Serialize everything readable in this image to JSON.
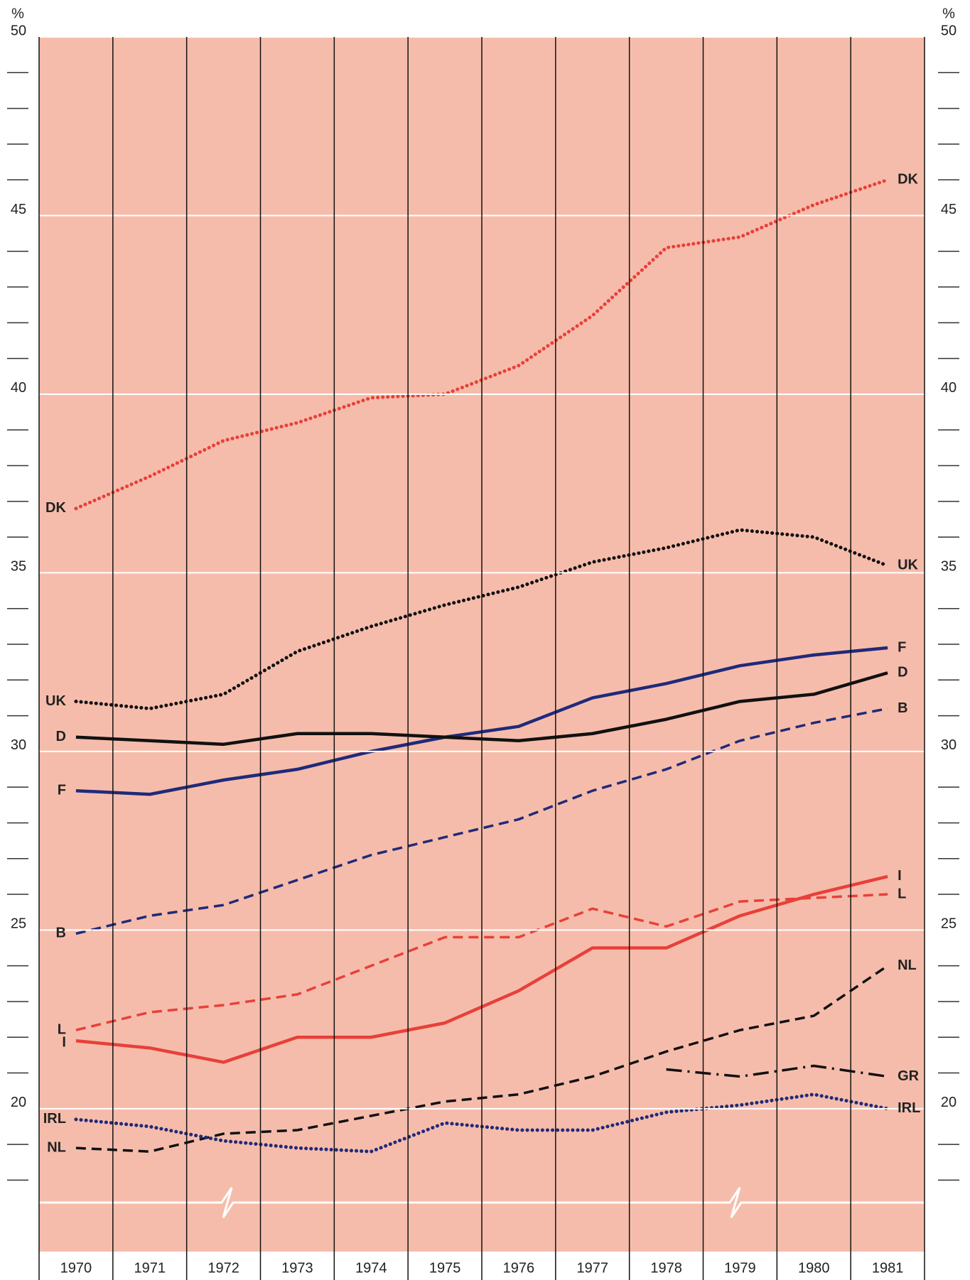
{
  "chart_data": {
    "type": "line",
    "y_unit": "%",
    "categories": [
      "1970",
      "1971",
      "1972",
      "1973",
      "1974",
      "1975",
      "1976",
      "1977",
      "1978",
      "1979",
      "1980",
      "1981"
    ],
    "series": [
      {
        "name": "DK",
        "color": "#e8403a",
        "style": "dotted",
        "values": [
          36.8,
          37.7,
          38.7,
          39.2,
          39.9,
          40.0,
          40.8,
          42.2,
          44.1,
          44.4,
          45.3,
          46.0
        ]
      },
      {
        "name": "UK",
        "color": "#111111",
        "style": "dotted",
        "values": [
          31.4,
          31.2,
          31.6,
          32.8,
          33.5,
          34.1,
          34.6,
          35.3,
          35.7,
          36.2,
          36.0,
          35.2
        ]
      },
      {
        "name": "F",
        "color": "#1f2a7a",
        "style": "solid",
        "values": [
          28.9,
          28.8,
          29.2,
          29.5,
          30.0,
          30.4,
          30.7,
          31.5,
          31.9,
          32.4,
          32.7,
          32.9
        ]
      },
      {
        "name": "D",
        "color": "#111111",
        "style": "solid",
        "values": [
          30.4,
          30.3,
          30.2,
          30.5,
          30.5,
          30.4,
          30.3,
          30.5,
          30.9,
          31.4,
          31.6,
          32.2
        ]
      },
      {
        "name": "B",
        "color": "#1f2a7a",
        "style": "dashed",
        "values": [
          24.9,
          25.4,
          25.7,
          26.4,
          27.1,
          27.6,
          28.1,
          28.9,
          29.5,
          30.3,
          30.8,
          31.2
        ]
      },
      {
        "name": "I",
        "color": "#e8403a",
        "style": "solid",
        "values": [
          21.9,
          21.7,
          21.3,
          22.0,
          22.0,
          22.4,
          23.3,
          24.5,
          24.5,
          25.4,
          26.0,
          26.5
        ]
      },
      {
        "name": "L",
        "color": "#e8403a",
        "style": "dashed",
        "values": [
          22.2,
          22.7,
          22.9,
          23.2,
          24.0,
          24.8,
          24.8,
          25.6,
          25.1,
          25.8,
          25.9,
          26.0
        ]
      },
      {
        "name": "NL",
        "color": "#111111",
        "style": "dashed",
        "values": [
          18.9,
          18.8,
          19.3,
          19.4,
          19.8,
          20.2,
          20.4,
          20.9,
          21.6,
          22.2,
          22.6,
          24.0
        ]
      },
      {
        "name": "GR",
        "color": "#111111",
        "style": "dashdot",
        "values": [
          null,
          null,
          null,
          null,
          null,
          null,
          null,
          null,
          21.1,
          20.9,
          21.2,
          20.9
        ]
      },
      {
        "name": "IRL",
        "color": "#1f2a7a",
        "style": "dotted",
        "values": [
          19.7,
          19.5,
          19.1,
          18.9,
          18.8,
          19.6,
          19.4,
          19.4,
          19.9,
          20.1,
          20.4,
          20.0
        ]
      }
    ],
    "ylim": [
      16,
      50
    ],
    "yticks": [
      20,
      25,
      30,
      35,
      40,
      45,
      50
    ],
    "minor_yticks": [
      18,
      19,
      21,
      22,
      23,
      24,
      26,
      27,
      28,
      29,
      31,
      32,
      33,
      34,
      36,
      37,
      38,
      39,
      41,
      42,
      43,
      44,
      46,
      47,
      48,
      49
    ],
    "grid": true
  }
}
